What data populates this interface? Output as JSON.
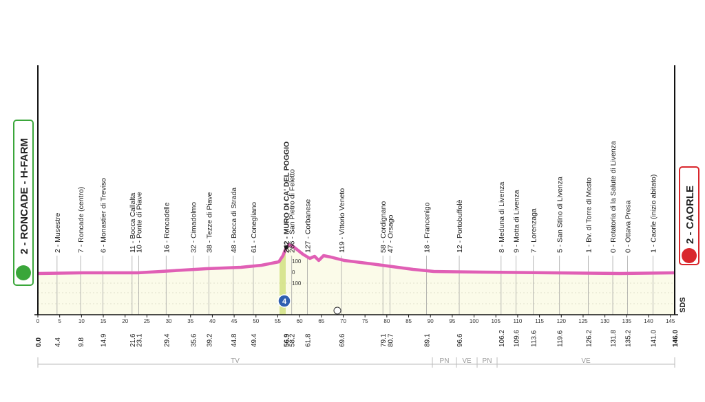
{
  "start": {
    "label": "2 - RONCADE - H-FARM",
    "km": "0.0"
  },
  "finish": {
    "label": "2 - CAORLE",
    "km": "146.0"
  },
  "climb": {
    "label": "242 - MURO DI CA' DEL POGGIO",
    "km": "56.9",
    "category": "4"
  },
  "waypoints": [
    {
      "label": "2 - Musestre",
      "km": "4.4"
    },
    {
      "label": "7 - Roncade (centro)",
      "km": "9.8"
    },
    {
      "label": "6 - Monastier di Treviso",
      "km": "14.9"
    },
    {
      "label": "11 - Bocca Callalta",
      "km": "21.6"
    },
    {
      "label": "10 - Ponte di Piave",
      "km": "23.1"
    },
    {
      "label": "16 - Roncadelle",
      "km": "29.4"
    },
    {
      "label": "32 - Cimadolmo",
      "km": "35.6"
    },
    {
      "label": "38 - Tezze di Piave",
      "km": "39.2"
    },
    {
      "label": "48 - Bocca di Strada",
      "km": "44.8"
    },
    {
      "label": "61 - Conegliano",
      "km": "49.4"
    },
    {
      "label": "266 - San Pietro di Feletto",
      "km": "58.2"
    },
    {
      "label": "127 - Corbanese",
      "km": "61.8"
    },
    {
      "label": "119 - Vittorio Veneto",
      "km": "69.6"
    },
    {
      "label": "58 - Cordignano",
      "km": "79.1"
    },
    {
      "label": "47 - Orsago",
      "km": "80.7"
    },
    {
      "label": "18 - Francenigo",
      "km": "89.1"
    },
    {
      "label": "12 - Portobuffolè",
      "km": "96.6"
    },
    {
      "label": "8 - Meduna di Livenza",
      "km": "106.2"
    },
    {
      "label": "9 - Motta di Livenza",
      "km": "109.6"
    },
    {
      "label": "7 - Lorenzaga",
      "km": "113.6"
    },
    {
      "label": "5 - San Stino di Livenza",
      "km": "119.6"
    },
    {
      "label": "1 - Bv. di Torre di Mosto",
      "km": "126.2"
    },
    {
      "label": "0 - Rotatoria di la Salute di Livenza",
      "km": "131.8"
    },
    {
      "label": "0 - Ottava Presa",
      "km": "135.2"
    },
    {
      "label": "1 - Caorle (inizio abitato)",
      "km": "141.0"
    }
  ],
  "xticks": [
    0,
    5,
    10,
    15,
    20,
    25,
    30,
    35,
    40,
    45,
    50,
    55,
    60,
    65,
    70,
    75,
    80,
    85,
    90,
    95,
    100,
    105,
    110,
    115,
    120,
    125,
    130,
    135,
    140,
    145
  ],
  "xlim": [
    0,
    146
  ],
  "regions": [
    "TV",
    "PN",
    "VE",
    "PN",
    "VE"
  ],
  "scale_labels": [
    "100",
    "0",
    "100"
  ],
  "brand": "SDS"
}
